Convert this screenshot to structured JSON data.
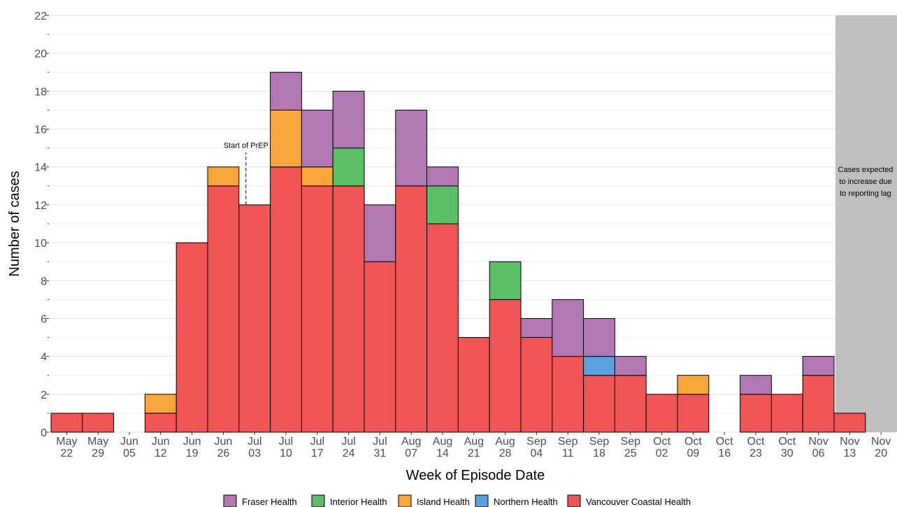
{
  "chart_data": {
    "type": "bar",
    "stacked": true,
    "xlabel": "Week of Episode Date",
    "ylabel": "Number of cases",
    "ylim": [
      0,
      22
    ],
    "yticks": [
      "0",
      "2",
      "4",
      "6",
      "8",
      "10",
      "12",
      "14",
      "16",
      "18",
      "20",
      "22"
    ],
    "grid": "horizontal",
    "legend_position": "bottom",
    "categories": [
      [
        "May",
        "22"
      ],
      [
        "May",
        "29"
      ],
      [
        "Jun",
        "05"
      ],
      [
        "Jun",
        "12"
      ],
      [
        "Jun",
        "19"
      ],
      [
        "Jun",
        "26"
      ],
      [
        "Jul",
        "03"
      ],
      [
        "Jul",
        "10"
      ],
      [
        "Jul",
        "17"
      ],
      [
        "Jul",
        "24"
      ],
      [
        "Jul",
        "31"
      ],
      [
        "Aug",
        "07"
      ],
      [
        "Aug",
        "14"
      ],
      [
        "Aug",
        "21"
      ],
      [
        "Aug",
        "28"
      ],
      [
        "Sep",
        "04"
      ],
      [
        "Sep",
        "11"
      ],
      [
        "Sep",
        "18"
      ],
      [
        "Sep",
        "25"
      ],
      [
        "Oct",
        "02"
      ],
      [
        "Oct",
        "09"
      ],
      [
        "Oct",
        "16"
      ],
      [
        "Oct",
        "23"
      ],
      [
        "Oct",
        "30"
      ],
      [
        "Nov",
        "06"
      ],
      [
        "Nov",
        "13"
      ],
      [
        "Nov",
        "20"
      ]
    ],
    "series": [
      {
        "name": "Vancouver Coastal Health",
        "color": "#f05454",
        "values": [
          1,
          1,
          0,
          1,
          10,
          13,
          12,
          14,
          13,
          13,
          9,
          13,
          11,
          5,
          7,
          5,
          4,
          3,
          3,
          2,
          2,
          0,
          2,
          2,
          3,
          1,
          0
        ]
      },
      {
        "name": "Northern Health",
        "color": "#5aa1dc",
        "values": [
          0,
          0,
          0,
          0,
          0,
          0,
          0,
          0,
          0,
          0,
          0,
          0,
          0,
          0,
          0,
          0,
          0,
          1,
          0,
          0,
          0,
          0,
          0,
          0,
          0,
          0,
          0
        ]
      },
      {
        "name": "Island Health",
        "color": "#f8a63c",
        "values": [
          0,
          0,
          0,
          1,
          0,
          1,
          0,
          3,
          1,
          0,
          0,
          0,
          0,
          0,
          0,
          0,
          0,
          0,
          0,
          0,
          1,
          0,
          0,
          0,
          0,
          0,
          0
        ]
      },
      {
        "name": "Interior Health",
        "color": "#5cbf68",
        "values": [
          0,
          0,
          0,
          0,
          0,
          0,
          0,
          0,
          0,
          2,
          0,
          0,
          2,
          0,
          2,
          0,
          0,
          0,
          0,
          0,
          0,
          0,
          0,
          0,
          0,
          0,
          0
        ]
      },
      {
        "name": "Fraser Health",
        "color": "#b278b4",
        "values": [
          0,
          0,
          0,
          0,
          0,
          0,
          0,
          2,
          3,
          3,
          3,
          4,
          1,
          0,
          0,
          1,
          3,
          2,
          1,
          0,
          0,
          0,
          1,
          0,
          1,
          0,
          0
        ]
      }
    ],
    "legend_order": [
      "Fraser Health",
      "Interior Health",
      "Island Health",
      "Northern Health",
      "Vancouver Coastal Health"
    ],
    "annotations": {
      "prep": {
        "text": "Start of PrEP",
        "category_index": 6,
        "y_from": 12,
        "y_to": 15
      },
      "lag": {
        "text_lines": [
          "Cases expected",
          "to increase due",
          "to reporting lag"
        ],
        "shaded_from_index": 25,
        "color": "#bfbfbf"
      }
    }
  }
}
